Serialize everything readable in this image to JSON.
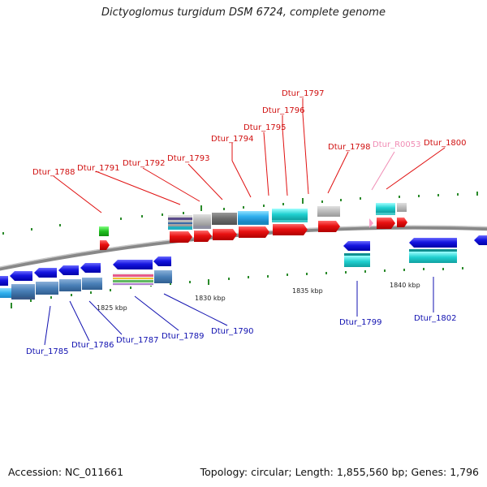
{
  "title": "Dictyoglomus turgidum DSM 6724, complete genome",
  "footer": {
    "accession": "Accession: NC_011661",
    "summary": "Topology: circular; Length: 1,855,560 bp; Genes: 1,796"
  },
  "scale_labels": [
    "1825 kbp",
    "1830 kbp",
    "1835 kbp",
    "1840 kbp"
  ],
  "genes_top": [
    {
      "id": "Dtur_1788",
      "color": "#d01010"
    },
    {
      "id": "Dtur_1791",
      "color": "#d01010"
    },
    {
      "id": "Dtur_1792",
      "color": "#d01010"
    },
    {
      "id": "Dtur_1793",
      "color": "#d01010"
    },
    {
      "id": "Dtur_1794",
      "color": "#d01010"
    },
    {
      "id": "Dtur_1795",
      "color": "#d01010"
    },
    {
      "id": "Dtur_1796",
      "color": "#d01010"
    },
    {
      "id": "Dtur_1797",
      "color": "#d01010"
    },
    {
      "id": "Dtur_1798",
      "color": "#d01010"
    },
    {
      "id": "Dtur_R0053",
      "color": "#f08cb4"
    },
    {
      "id": "Dtur_1800",
      "color": "#d01010"
    }
  ],
  "genes_bottom": [
    {
      "id": "Dtur_1785"
    },
    {
      "id": "Dtur_1786"
    },
    {
      "id": "Dtur_1787"
    },
    {
      "id": "Dtur_1789"
    },
    {
      "id": "Dtur_1790"
    },
    {
      "id": "Dtur_1799"
    },
    {
      "id": "Dtur_1802"
    }
  ],
  "colors": {
    "forward_gene": "#e81010",
    "reverse_gene": "#1515e0",
    "rna_gene": "#f8a0c8",
    "backbone": "#888888",
    "tick": "#2a8a2a"
  }
}
